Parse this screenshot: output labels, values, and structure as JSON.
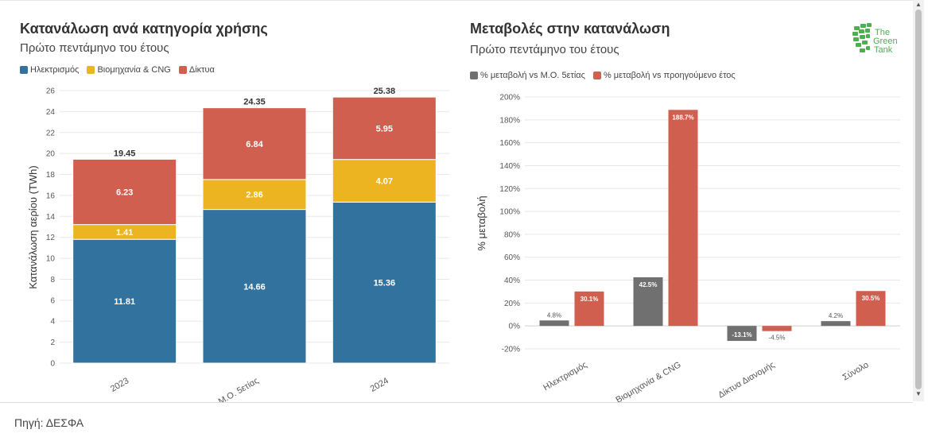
{
  "source": "Πηγή: ΔΕΣΦΑ",
  "logo": {
    "line1": "The",
    "line2": "Green",
    "line3": "Tank",
    "color": "#4caf50"
  },
  "colors": {
    "electricity": "#31739e",
    "industry": "#ecb421",
    "networks": "#d05f4f",
    "gray": "#707070"
  },
  "chart_data": [
    {
      "type": "bar",
      "stacked": true,
      "title": "Κατανάλωση ανά κατηγορία χρήσης",
      "subtitle": "Πρώτο πεντάμηνο του έτους",
      "ylabel": "Κατανάλωση αερίου (TWh)",
      "categories": [
        "2023",
        "M.O. 5ετίας",
        "2024"
      ],
      "totals": [
        "19.45",
        "24.35",
        "25.38"
      ],
      "ylim": [
        0,
        26
      ],
      "yticks": [
        "0",
        "2",
        "4",
        "6",
        "8",
        "10",
        "12",
        "14",
        "16",
        "18",
        "20",
        "22",
        "24",
        "26"
      ],
      "series": [
        {
          "name": "Ηλεκτρισμός",
          "color": "#31739e",
          "values": [
            11.81,
            14.66,
            15.36
          ]
        },
        {
          "name": "Βιομηχανία & CNG",
          "color": "#ecb421",
          "values": [
            1.41,
            2.86,
            4.07
          ]
        },
        {
          "name": "Δίκτυα",
          "color": "#d05f4f",
          "values": [
            6.23,
            6.84,
            5.95
          ]
        }
      ]
    },
    {
      "type": "bar",
      "grouped": true,
      "title": "Μεταβολές στην κατανάλωση",
      "subtitle": "Πρώτο πεντάμηνο του έτους",
      "ylabel": "% μεταβολή",
      "categories": [
        "Ηλεκτρισμός",
        "Βιομηχανία & CNG",
        "Δίκτυα Διανομής",
        "Σύνολο"
      ],
      "ylim": [
        -20,
        200
      ],
      "yticks": [
        "-20%",
        "0%",
        "20%",
        "40%",
        "60%",
        "80%",
        "100%",
        "120%",
        "140%",
        "160%",
        "180%",
        "200%"
      ],
      "series": [
        {
          "name": "% μεταβολή vs M.O. 5ετίας",
          "color": "#707070",
          "values": [
            4.8,
            42.5,
            -13.1,
            4.2
          ],
          "labels": [
            "4.8%",
            "42.5%",
            "-13.1%",
            "4.2%"
          ]
        },
        {
          "name": "% μεταβολή vs προηγούμενο έτος",
          "color": "#d05f4f",
          "values": [
            30.1,
            188.7,
            -4.5,
            30.5
          ],
          "labels": [
            "30.1%",
            "188.7%",
            "-4.5%",
            "30.5%"
          ]
        }
      ]
    }
  ]
}
